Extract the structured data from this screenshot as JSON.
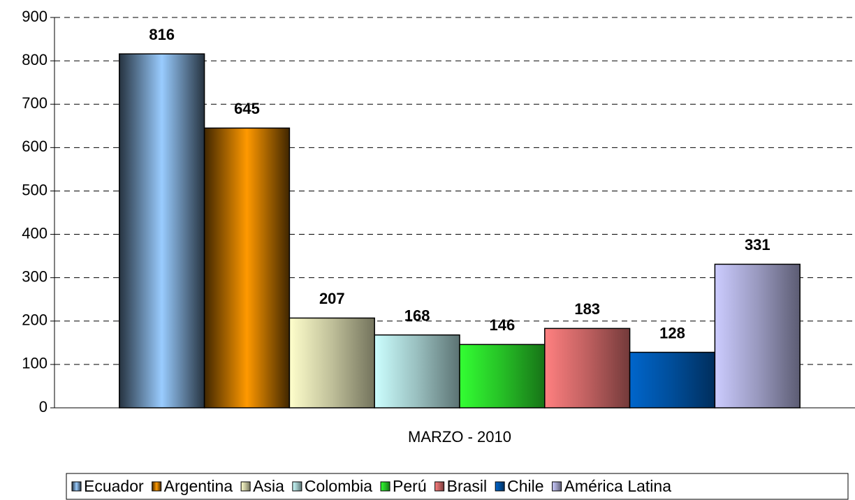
{
  "chart_data": {
    "type": "bar",
    "categories": [
      "MARZO - 2010"
    ],
    "series": [
      {
        "name": "Ecuador",
        "color": "#99ccff",
        "values": [
          816
        ]
      },
      {
        "name": "Argentina",
        "color": "#ff9900",
        "values": [
          645
        ]
      },
      {
        "name": "Asia",
        "color": "#ffffcc",
        "values": [
          207
        ]
      },
      {
        "name": "Colombia",
        "color": "#ccffff",
        "values": [
          168
        ]
      },
      {
        "name": "Perú",
        "color": "#33ff33",
        "values": [
          146
        ]
      },
      {
        "name": "Brasil",
        "color": "#ff8080",
        "values": [
          183
        ]
      },
      {
        "name": "Chile",
        "color": "#0066cc",
        "values": [
          128
        ]
      },
      {
        "name": "América Latina",
        "color": "#ccccff",
        "values": [
          331
        ]
      }
    ],
    "ylim": [
      0,
      900
    ],
    "yticks": [
      0,
      100,
      200,
      300,
      400,
      500,
      600,
      700,
      800,
      900
    ],
    "grid": true,
    "legend": "bottom"
  }
}
